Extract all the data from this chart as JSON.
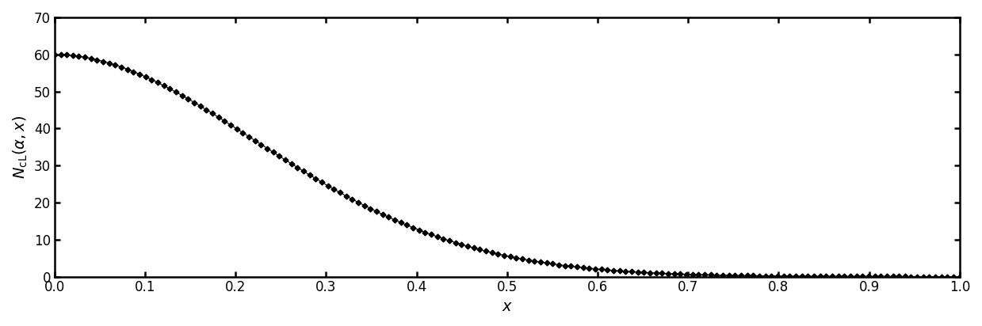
{
  "title": "",
  "xlabel": "$x$",
  "ylabel": "$N_{\\mathrm{cL}}(\\alpha, x)$",
  "xlim": [
    0.0,
    1.0
  ],
  "ylim": [
    0,
    70
  ],
  "xticks": [
    0.0,
    0.1,
    0.2,
    0.3,
    0.4,
    0.5,
    0.6,
    0.7,
    0.8,
    0.9,
    1.0
  ],
  "yticks": [
    0,
    10,
    20,
    30,
    40,
    50,
    60,
    70
  ],
  "line_color": "black",
  "marker": "D",
  "markersize": 3.5,
  "linewidth": 0.8,
  "background_color": "white",
  "tick_fontsize": 12,
  "label_fontsize": 14,
  "func_amplitude": 60.0,
  "func_a": 6.5,
  "func_b": 1.45,
  "n_markers": 150
}
